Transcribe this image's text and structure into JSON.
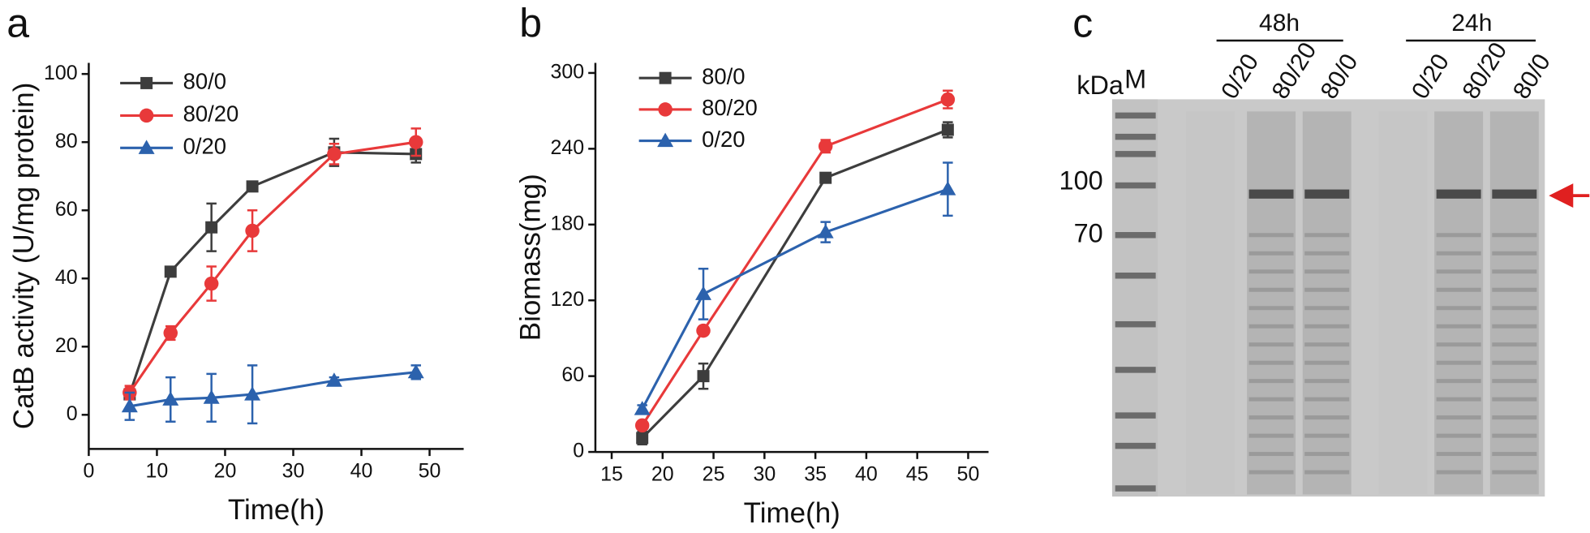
{
  "chart_data": [
    {
      "type": "line",
      "label": "a",
      "x_label": "Time(h)",
      "y_label": "CatB activity (U/mg protein)",
      "x": [
        6,
        12,
        18,
        24,
        36,
        48
      ],
      "xlim": [
        0,
        55
      ],
      "xticks": [
        0,
        10,
        20,
        30,
        40,
        50
      ],
      "ylim": [
        -10,
        100
      ],
      "yticks": [
        0,
        20,
        40,
        60,
        80,
        100
      ],
      "legend": "upper left",
      "series": [
        {
          "name": "80/0",
          "color": "#3d3d3d",
          "marker": "square",
          "values": [
            6,
            42,
            55,
            67,
            77,
            76.5
          ],
          "errors": [
            1,
            1,
            7,
            1,
            4,
            2.5
          ]
        },
        {
          "name": "80/20",
          "color": "#e8393a",
          "marker": "circle",
          "values": [
            6.5,
            24,
            38.5,
            54,
            76.5,
            80
          ],
          "errors": [
            2,
            2,
            5,
            6,
            3,
            4
          ]
        },
        {
          "name": "0/20",
          "color": "#2c62ad",
          "marker": "triangle",
          "values": [
            2.5,
            4.5,
            5,
            6,
            10,
            12.5
          ],
          "errors": [
            4,
            6.5,
            7,
            8.5,
            1,
            2
          ]
        }
      ]
    },
    {
      "type": "line",
      "label": "b",
      "x_label": "Time(h)",
      "y_label": "Biomass(mg)",
      "x": [
        18,
        24,
        36,
        48
      ],
      "xlim": [
        13.4,
        52
      ],
      "xticks": [
        15,
        20,
        25,
        30,
        35,
        40,
        45,
        50
      ],
      "ylim": [
        0,
        300
      ],
      "yticks": [
        0,
        60,
        120,
        180,
        240,
        300
      ],
      "legend": "upper left",
      "series": [
        {
          "name": "80/0",
          "color": "#3d3d3d",
          "marker": "square",
          "values": [
            11,
            60,
            217,
            255
          ],
          "errors": [
            5,
            10,
            3,
            6
          ]
        },
        {
          "name": "80/20",
          "color": "#e8393a",
          "marker": "circle",
          "values": [
            21,
            96,
            242,
            279
          ],
          "errors": [
            3,
            3,
            5,
            7
          ]
        },
        {
          "name": "0/20",
          "color": "#2c62ad",
          "marker": "triangle",
          "values": [
            34,
            125,
            174,
            208
          ],
          "errors": [
            3,
            20,
            8,
            21
          ]
        }
      ]
    }
  ],
  "gel": {
    "label": "c",
    "groups": [
      "48h",
      "24h"
    ],
    "unit": "kDa",
    "marker": "M",
    "lanes": [
      "0/20",
      "80/20",
      "80/0",
      "0/20",
      "80/20",
      "80/0"
    ],
    "sizes": [
      "100",
      "70"
    ]
  }
}
